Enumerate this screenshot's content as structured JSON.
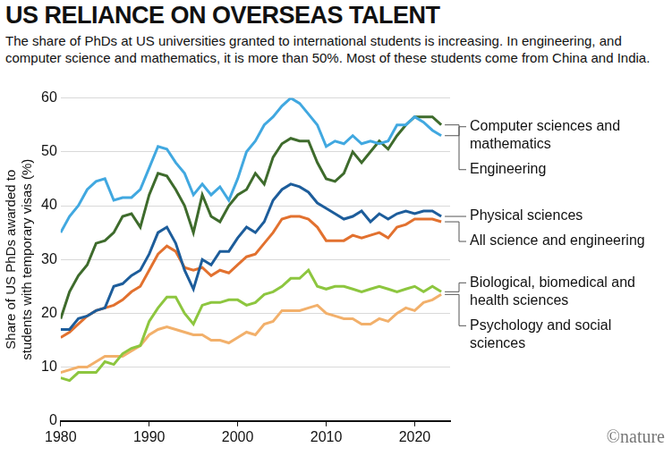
{
  "chart_data": {
    "type": "line",
    "title": "US RELIANCE ON OVERSEAS TALENT",
    "subtitle": "The share of PhDs at US universities granted to international students is increasing. In engineering, and computer science and mathematics, it is more than 50%. Most of these students come from China and India.",
    "y_label": "Share of US PhDs awarded to students with temporary visas (%)",
    "credit": "©nature",
    "x": [
      1980,
      1981,
      1982,
      1983,
      1984,
      1985,
      1986,
      1987,
      1988,
      1989,
      1990,
      1991,
      1992,
      1993,
      1994,
      1995,
      1996,
      1997,
      1998,
      1999,
      2000,
      2001,
      2002,
      2003,
      2004,
      2005,
      2006,
      2007,
      2008,
      2009,
      2010,
      2011,
      2012,
      2013,
      2014,
      2015,
      2016,
      2017,
      2018,
      2019,
      2020,
      2021,
      2022,
      2023
    ],
    "xlim": [
      1980,
      2024
    ],
    "xticks": [
      1980,
      1990,
      2000,
      2010,
      2020
    ],
    "ylim": [
      0,
      60
    ],
    "yticks": [
      0,
      10,
      20,
      30,
      40,
      50,
      60
    ],
    "grid": true,
    "series": [
      {
        "name": "Computer sciences and mathematics",
        "color": "#41a8e0",
        "values": [
          35,
          38,
          40,
          43,
          44.5,
          45,
          41,
          41.5,
          41.5,
          43,
          47,
          51,
          50.5,
          48,
          46,
          42,
          44,
          42,
          43.5,
          41,
          45,
          50,
          52,
          55,
          56.5,
          58.5,
          60,
          59,
          57,
          55,
          51,
          52,
          51.5,
          53,
          51.5,
          52,
          51.5,
          52,
          55,
          55,
          56.5,
          55.5,
          54,
          53
        ]
      },
      {
        "name": "Engineering",
        "color": "#3e6b2c",
        "values": [
          19,
          24,
          27,
          29,
          33,
          33.5,
          35,
          38,
          38.5,
          36,
          42,
          46,
          45.5,
          43,
          40,
          35,
          42,
          38,
          37,
          40,
          42,
          43,
          46,
          44,
          49,
          51.5,
          52.5,
          52,
          52,
          48,
          45,
          44.5,
          46,
          50,
          48,
          50,
          52,
          50.5,
          53,
          55,
          56.5,
          56.5,
          56.5,
          55
        ]
      },
      {
        "name": "Physical sciences",
        "color": "#1d5d9b",
        "values": [
          17,
          17,
          19,
          19.5,
          20.5,
          21,
          25,
          25.5,
          27,
          28,
          31,
          35,
          36,
          33,
          28,
          24.5,
          30,
          29,
          31.5,
          31.5,
          34,
          36,
          35,
          37,
          41,
          43,
          44,
          43.5,
          42.5,
          40.5,
          39.5,
          38.5,
          37.5,
          38,
          39,
          37,
          38.5,
          37.5,
          38.5,
          39,
          38.5,
          39,
          39,
          38
        ]
      },
      {
        "name": "All science and engineering",
        "color": "#e2712f",
        "values": [
          15.5,
          16.5,
          18,
          19.5,
          20.5,
          21,
          21.5,
          22.5,
          24,
          25,
          28,
          31,
          32.5,
          31.5,
          28.5,
          28,
          28.5,
          27,
          28,
          27.5,
          29,
          30.5,
          31,
          33,
          35,
          37.5,
          38,
          38,
          37.5,
          36,
          33.5,
          33.5,
          33.5,
          34.5,
          34,
          34.5,
          35,
          34,
          36,
          36.5,
          37.5,
          37.5,
          37.5,
          37
        ]
      },
      {
        "name": "Biological, biomedical and health sciences",
        "color": "#8dc63f",
        "values": [
          8,
          7.5,
          9,
          9,
          9,
          11,
          10.5,
          12.5,
          13.5,
          14,
          18.5,
          21,
          23,
          23,
          20,
          18,
          21.5,
          22,
          22,
          22.5,
          22.5,
          21.5,
          22,
          23.5,
          24,
          25,
          26.5,
          26.5,
          28,
          25,
          24.5,
          25,
          25,
          24.5,
          24,
          24.5,
          25,
          24.5,
          24,
          24.5,
          25,
          24,
          25,
          24
        ]
      },
      {
        "name": "Psychology and social sciences",
        "color": "#f2b06b",
        "values": [
          9,
          9.5,
          10,
          10,
          11,
          12,
          12,
          12,
          13,
          14,
          16,
          17,
          17.5,
          17,
          16.5,
          16,
          16,
          15,
          15,
          14.5,
          15.5,
          16.5,
          16,
          18,
          18.5,
          20.5,
          20.5,
          20.5,
          21,
          21.5,
          20,
          19.5,
          19,
          19,
          18,
          18,
          19,
          18.5,
          20,
          21,
          20.5,
          22,
          22.5,
          23.5
        ]
      }
    ]
  }
}
